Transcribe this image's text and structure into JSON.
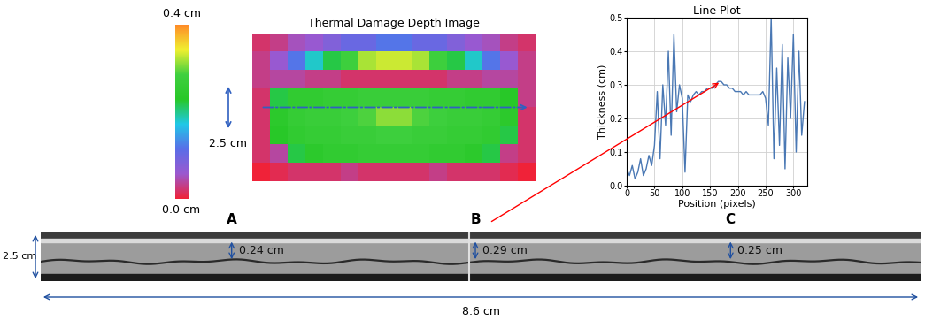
{
  "chart_data": {
    "type": "line",
    "title": "Line Plot",
    "x_label": "Position (pixels)",
    "y_label": "Thickness (cm)",
    "x": [
      0,
      5,
      10,
      15,
      20,
      25,
      30,
      35,
      40,
      45,
      50,
      55,
      60,
      65,
      70,
      75,
      80,
      85,
      90,
      95,
      100,
      105,
      110,
      115,
      120,
      125,
      130,
      135,
      140,
      145,
      150,
      155,
      160,
      165,
      170,
      175,
      180,
      185,
      190,
      195,
      200,
      205,
      210,
      215,
      220,
      225,
      230,
      235,
      240,
      245,
      250,
      255,
      260,
      265,
      270,
      275,
      280,
      285,
      290,
      295,
      300,
      305,
      310,
      315,
      320
    ],
    "values": [
      0.05,
      0.03,
      0.06,
      0.02,
      0.04,
      0.08,
      0.03,
      0.05,
      0.09,
      0.06,
      0.12,
      0.28,
      0.08,
      0.3,
      0.18,
      0.4,
      0.15,
      0.45,
      0.22,
      0.3,
      0.26,
      0.04,
      0.27,
      0.25,
      0.27,
      0.28,
      0.27,
      0.28,
      0.28,
      0.29,
      0.29,
      0.29,
      0.3,
      0.31,
      0.31,
      0.3,
      0.3,
      0.29,
      0.29,
      0.28,
      0.28,
      0.28,
      0.27,
      0.28,
      0.27,
      0.27,
      0.27,
      0.27,
      0.27,
      0.28,
      0.26,
      0.18,
      0.5,
      0.08,
      0.35,
      0.12,
      0.42,
      0.05,
      0.38,
      0.2,
      0.45,
      0.1,
      0.4,
      0.15,
      0.25
    ],
    "color": "#4a78b4",
    "xlim": [
      0,
      325
    ],
    "ylim": [
      0,
      0.5
    ],
    "xticks": [
      0,
      50,
      100,
      150,
      200,
      250,
      300
    ],
    "yticks": [
      {
        "value": 0,
        "label": "0.0"
      },
      0.1,
      0.2,
      0.3,
      0.4,
      0.5
    ],
    "grid": true,
    "marked_point": {
      "x": 170,
      "y": 0.31
    }
  },
  "colorbar": {
    "range": [
      0,
      0.4
    ],
    "ticks": [
      {
        "value": 0,
        "label": "0.0 cm"
      },
      {
        "value": 0.4,
        "label": "0.4 cm"
      }
    ],
    "colors": [
      "#f02238",
      "#9b59d0",
      "#5a6ee8",
      "#20c8e8",
      "#28c828",
      "#40d040",
      "#f0f030",
      "#ff8c28"
    ]
  },
  "thermal_image": {
    "title": "Thermal Damage Depth Image",
    "scale_label": "2.5 cm",
    "cells": [
      [
        0.02,
        0.03,
        0.05,
        0.06,
        0.08,
        0.1,
        0.1,
        0.12,
        0.12,
        0.1,
        0.1,
        0.08,
        0.06,
        0.05,
        0.03,
        0.02
      ],
      [
        0.03,
        0.06,
        0.12,
        0.18,
        0.22,
        0.28,
        0.32,
        0.33,
        0.33,
        0.32,
        0.28,
        0.22,
        0.18,
        0.12,
        0.06,
        0.03
      ],
      [
        0.03,
        0.04,
        0.04,
        0.03,
        0.03,
        0.02,
        0.02,
        0.02,
        0.02,
        0.02,
        0.02,
        0.03,
        0.03,
        0.04,
        0.04,
        0.03
      ],
      [
        0.02,
        0.22,
        0.25,
        0.25,
        0.26,
        0.26,
        0.27,
        0.27,
        0.27,
        0.27,
        0.26,
        0.26,
        0.25,
        0.25,
        0.23,
        0.03
      ],
      [
        0.02,
        0.24,
        0.26,
        0.27,
        0.27,
        0.28,
        0.29,
        0.31,
        0.31,
        0.29,
        0.28,
        0.27,
        0.27,
        0.26,
        0.24,
        0.02
      ],
      [
        0.02,
        0.23,
        0.25,
        0.26,
        0.26,
        0.27,
        0.27,
        0.28,
        0.28,
        0.27,
        0.27,
        0.26,
        0.26,
        0.25,
        0.22,
        0.02
      ],
      [
        0.02,
        0.04,
        0.22,
        0.24,
        0.25,
        0.25,
        0.26,
        0.26,
        0.26,
        0.26,
        0.25,
        0.25,
        0.24,
        0.22,
        0.03,
        0.02
      ],
      [
        0.0,
        0.01,
        0.02,
        0.02,
        0.02,
        0.03,
        0.02,
        0.02,
        0.02,
        0.02,
        0.03,
        0.02,
        0.02,
        0.02,
        0.01,
        0.0
      ]
    ]
  },
  "ct_strip": {
    "panels": [
      "A",
      "B",
      "C"
    ],
    "thicknesses": [
      "0.24 cm",
      "0.29 cm",
      "0.25 cm"
    ],
    "height_label": "2.5 cm",
    "width_label": "8.6 cm"
  }
}
